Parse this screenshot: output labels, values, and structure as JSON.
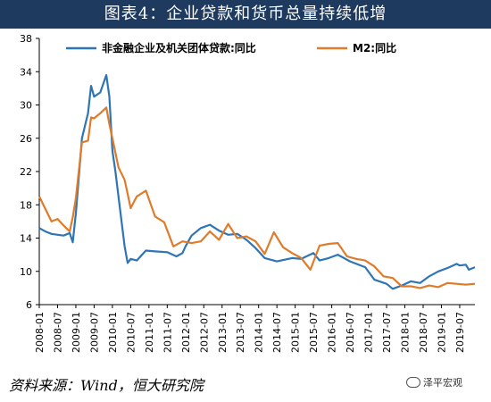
{
  "title": "图表4：企业贷款和货币总量持续低增",
  "source": "资料来源：Wind，恒大研究院",
  "watermark": "泽平宏观",
  "colors": {
    "title_bg": "#1f3a5f",
    "series1": "#2e75b6",
    "series2": "#e07b2a"
  },
  "chart_data": {
    "type": "line",
    "ylim": [
      6,
      38
    ],
    "yticks": [
      6,
      10,
      14,
      18,
      22,
      26,
      30,
      34,
      38
    ],
    "xticks": [
      "2008-01",
      "2008-07",
      "2009-01",
      "2009-07",
      "2010-01",
      "2010-07",
      "2011-01",
      "2011-07",
      "2012-01",
      "2012-07",
      "2013-01",
      "2013-07",
      "2014-01",
      "2014-07",
      "2015-01",
      "2015-07",
      "2016-01",
      "2016-07",
      "2017-01",
      "2017-07",
      "2018-01",
      "2018-07",
      "2019-01",
      "2019-07"
    ],
    "legend_position": "top",
    "series": [
      {
        "name": "非金融企业及机关团体贷款:同比",
        "color": "#2e75b6",
        "points": [
          [
            "2008-01",
            15.2
          ],
          [
            "2008-03",
            14.8
          ],
          [
            "2008-05",
            14.5
          ],
          [
            "2008-07",
            14.4
          ],
          [
            "2008-09",
            14.3
          ],
          [
            "2008-11",
            14.6
          ],
          [
            "2008-12",
            13.5
          ],
          [
            "2009-01",
            17.0
          ],
          [
            "2009-03",
            26.0
          ],
          [
            "2009-05",
            29.0
          ],
          [
            "2009-06",
            32.3
          ],
          [
            "2009-07",
            31.0
          ],
          [
            "2009-09",
            31.5
          ],
          [
            "2009-11",
            33.6
          ],
          [
            "2009-12",
            31.0
          ],
          [
            "2010-01",
            24.5
          ],
          [
            "2010-02",
            22.0
          ],
          [
            "2010-03",
            19.0
          ],
          [
            "2010-05",
            13.0
          ],
          [
            "2010-06",
            11.0
          ],
          [
            "2010-07",
            11.5
          ],
          [
            "2010-09",
            11.3
          ],
          [
            "2010-12",
            12.5
          ],
          [
            "2011-03",
            12.4
          ],
          [
            "2011-07",
            12.3
          ],
          [
            "2011-10",
            11.8
          ],
          [
            "2011-12",
            12.2
          ],
          [
            "2012-01",
            13.0
          ],
          [
            "2012-03",
            14.3
          ],
          [
            "2012-06",
            15.2
          ],
          [
            "2012-09",
            15.6
          ],
          [
            "2012-12",
            14.9
          ],
          [
            "2013-03",
            14.4
          ],
          [
            "2013-06",
            14.5
          ],
          [
            "2013-09",
            13.8
          ],
          [
            "2013-12",
            12.8
          ],
          [
            "2014-03",
            11.6
          ],
          [
            "2014-07",
            11.2
          ],
          [
            "2014-12",
            11.6
          ],
          [
            "2015-03",
            11.5
          ],
          [
            "2015-07",
            12.2
          ],
          [
            "2015-09",
            11.3
          ],
          [
            "2015-12",
            11.6
          ],
          [
            "2016-03",
            12.0
          ],
          [
            "2016-07",
            11.2
          ],
          [
            "2016-12",
            10.5
          ],
          [
            "2017-03",
            9.0
          ],
          [
            "2017-07",
            8.5
          ],
          [
            "2017-09",
            7.9
          ],
          [
            "2017-12",
            8.3
          ],
          [
            "2018-03",
            8.8
          ],
          [
            "2018-06",
            8.6
          ],
          [
            "2018-09",
            9.4
          ],
          [
            "2018-12",
            10.0
          ],
          [
            "2019-03",
            10.4
          ],
          [
            "2019-06",
            10.9
          ],
          [
            "2019-07",
            10.7
          ],
          [
            "2019-09",
            10.8
          ],
          [
            "2019-10",
            10.2
          ],
          [
            "2019-12",
            10.5
          ]
        ]
      },
      {
        "name": "M2:同比",
        "color": "#e07b2a",
        "points": [
          [
            "2008-01",
            19.0
          ],
          [
            "2008-03",
            17.5
          ],
          [
            "2008-05",
            16.0
          ],
          [
            "2008-07",
            16.3
          ],
          [
            "2008-09",
            15.5
          ],
          [
            "2008-11",
            14.8
          ],
          [
            "2008-12",
            16.5
          ],
          [
            "2009-01",
            18.8
          ],
          [
            "2009-03",
            25.5
          ],
          [
            "2009-05",
            25.7
          ],
          [
            "2009-06",
            28.5
          ],
          [
            "2009-07",
            28.4
          ],
          [
            "2009-09",
            29.0
          ],
          [
            "2009-11",
            29.7
          ],
          [
            "2009-12",
            27.7
          ],
          [
            "2010-01",
            26.0
          ],
          [
            "2010-03",
            22.5
          ],
          [
            "2010-05",
            21.0
          ],
          [
            "2010-07",
            17.6
          ],
          [
            "2010-09",
            19.0
          ],
          [
            "2010-12",
            19.7
          ],
          [
            "2011-03",
            16.6
          ],
          [
            "2011-06",
            15.9
          ],
          [
            "2011-09",
            13.0
          ],
          [
            "2011-12",
            13.6
          ],
          [
            "2012-03",
            13.4
          ],
          [
            "2012-06",
            13.6
          ],
          [
            "2012-09",
            14.8
          ],
          [
            "2012-12",
            13.8
          ],
          [
            "2013-03",
            15.7
          ],
          [
            "2013-06",
            14.0
          ],
          [
            "2013-09",
            14.2
          ],
          [
            "2013-12",
            13.6
          ],
          [
            "2014-03",
            12.1
          ],
          [
            "2014-06",
            14.7
          ],
          [
            "2014-09",
            12.9
          ],
          [
            "2014-12",
            12.2
          ],
          [
            "2015-03",
            11.6
          ],
          [
            "2015-06",
            10.2
          ],
          [
            "2015-09",
            13.1
          ],
          [
            "2015-12",
            13.3
          ],
          [
            "2016-03",
            13.4
          ],
          [
            "2016-06",
            11.8
          ],
          [
            "2016-09",
            11.5
          ],
          [
            "2016-12",
            11.3
          ],
          [
            "2017-03",
            10.6
          ],
          [
            "2017-06",
            9.4
          ],
          [
            "2017-09",
            9.2
          ],
          [
            "2017-12",
            8.2
          ],
          [
            "2018-03",
            8.2
          ],
          [
            "2018-06",
            8.0
          ],
          [
            "2018-09",
            8.3
          ],
          [
            "2018-12",
            8.1
          ],
          [
            "2019-03",
            8.6
          ],
          [
            "2019-06",
            8.5
          ],
          [
            "2019-09",
            8.4
          ],
          [
            "2019-12",
            8.5
          ]
        ]
      }
    ]
  }
}
